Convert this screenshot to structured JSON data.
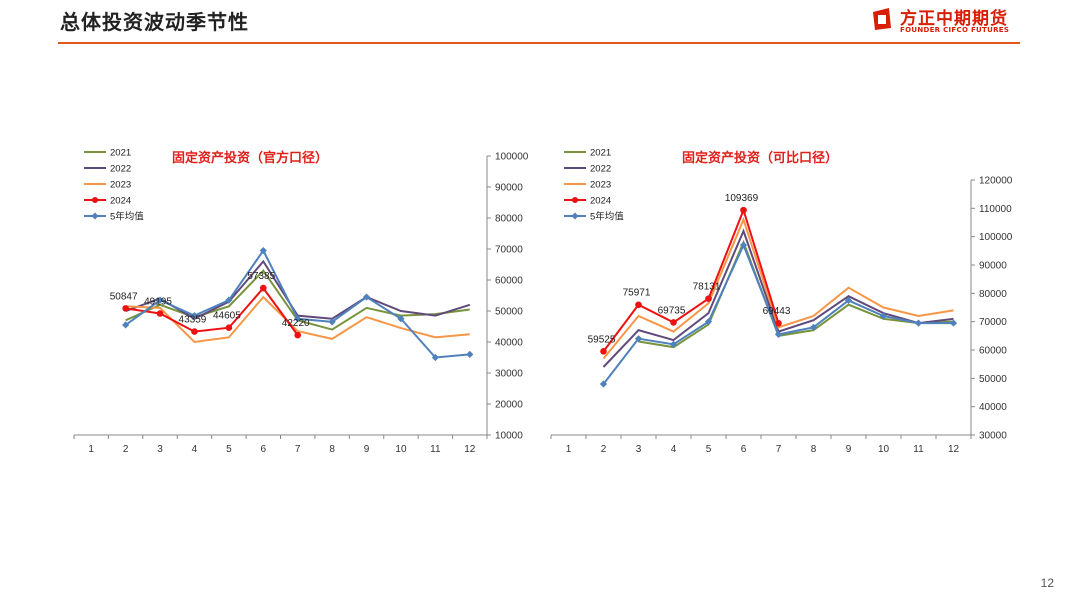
{
  "header": {
    "title": "总体投资波动季节性",
    "logo_cn": "方正中期期货",
    "logo_en": "FOUNDER CIFCO FUTURES",
    "page_number": "12"
  },
  "colors": {
    "accent": "#e2561c",
    "brand": "#d81e06"
  },
  "chart_data": [
    {
      "type": "line",
      "title": "固定资产投资（官方口径）",
      "x": [
        1,
        2,
        3,
        4,
        5,
        6,
        7,
        8,
        9,
        10,
        11,
        12
      ],
      "xlabel": "",
      "ylabel": "",
      "ylim": [
        10000,
        100000
      ],
      "yticks": [
        10000,
        20000,
        30000,
        40000,
        50000,
        60000,
        70000,
        80000,
        90000,
        100000
      ],
      "y_axis_position": "right",
      "legend_position": "top-left",
      "series": [
        {
          "name": "2021",
          "color": "#77933c",
          "marker": "none",
          "values": [
            null,
            47000,
            52000,
            48000,
            51500,
            63000,
            47000,
            44000,
            51000,
            48500,
            49000,
            50500
          ]
        },
        {
          "name": "2022",
          "color": "#604a7b",
          "marker": "none",
          "values": [
            null,
            50000,
            54000,
            47500,
            53000,
            66000,
            48500,
            47500,
            54500,
            50000,
            48500,
            52000
          ]
        },
        {
          "name": "2023",
          "color": "#f79646",
          "marker": "none",
          "values": [
            null,
            51500,
            51000,
            40000,
            41500,
            54500,
            43500,
            41000,
            48000,
            44500,
            41500,
            42500
          ]
        },
        {
          "name": "2024",
          "color": "#ee1111",
          "marker": "dot",
          "values": [
            null,
            50847,
            49195,
            43359,
            44605,
            57385,
            42220,
            null,
            null,
            null,
            null,
            null
          ]
        },
        {
          "name": "5年均值",
          "color": "#4f81bd",
          "marker": "diamond",
          "values": [
            null,
            45500,
            53500,
            48500,
            53500,
            69500,
            47500,
            46500,
            54500,
            47500,
            35000,
            36000
          ]
        }
      ],
      "data_labels": [
        {
          "x": 2,
          "y": 50847,
          "text": "50847"
        },
        {
          "x": 3,
          "y": 49195,
          "text": "49195"
        },
        {
          "x": 4,
          "y": 43359,
          "text": "43359"
        },
        {
          "x": 5,
          "y": 44605,
          "text": "44605"
        },
        {
          "x": 6,
          "y": 57385,
          "text": "57385"
        },
        {
          "x": 7,
          "y": 42220,
          "text": "42220"
        }
      ]
    },
    {
      "type": "line",
      "title": "固定资产投资（可比口径）",
      "x": [
        1,
        2,
        3,
        4,
        5,
        6,
        7,
        8,
        9,
        10,
        11,
        12
      ],
      "xlabel": "",
      "ylabel": "",
      "ylim": [
        30000,
        120000
      ],
      "yticks": [
        30000,
        40000,
        50000,
        60000,
        70000,
        80000,
        90000,
        100000,
        110000,
        120000
      ],
      "y_axis_position": "right",
      "legend_position": "top-left",
      "series": [
        {
          "name": "2021",
          "color": "#77933c",
          "marker": "none",
          "values": [
            null,
            null,
            63000,
            61000,
            69000,
            98000,
            65000,
            67000,
            76000,
            71000,
            69500,
            70000
          ]
        },
        {
          "name": "2022",
          "color": "#604a7b",
          "marker": "none",
          "values": [
            null,
            54000,
            67000,
            63500,
            73000,
            102000,
            66500,
            70500,
            79000,
            73000,
            69500,
            71000
          ]
        },
        {
          "name": "2023",
          "color": "#f79646",
          "marker": "none",
          "values": [
            null,
            57000,
            72000,
            66500,
            76500,
            106000,
            68000,
            72000,
            82000,
            75000,
            72000,
            74000
          ]
        },
        {
          "name": "2024",
          "color": "#ee1111",
          "marker": "dot",
          "values": [
            null,
            59525,
            75971,
            69735,
            78131,
            109369,
            69443,
            null,
            null,
            null,
            null,
            null
          ]
        },
        {
          "name": "5年均值",
          "color": "#4f81bd",
          "marker": "diamond",
          "values": [
            null,
            48000,
            64000,
            62000,
            70000,
            97000,
            65500,
            68000,
            77500,
            72000,
            69500,
            69500
          ]
        }
      ],
      "data_labels": [
        {
          "x": 2,
          "y": 59525,
          "text": "59525"
        },
        {
          "x": 3,
          "y": 75971,
          "text": "75971"
        },
        {
          "x": 4,
          "y": 69735,
          "text": "69735"
        },
        {
          "x": 5,
          "y": 78131,
          "text": "78131"
        },
        {
          "x": 6,
          "y": 109369,
          "text": "109369"
        },
        {
          "x": 7,
          "y": 69443,
          "text": "69443"
        }
      ]
    }
  ]
}
